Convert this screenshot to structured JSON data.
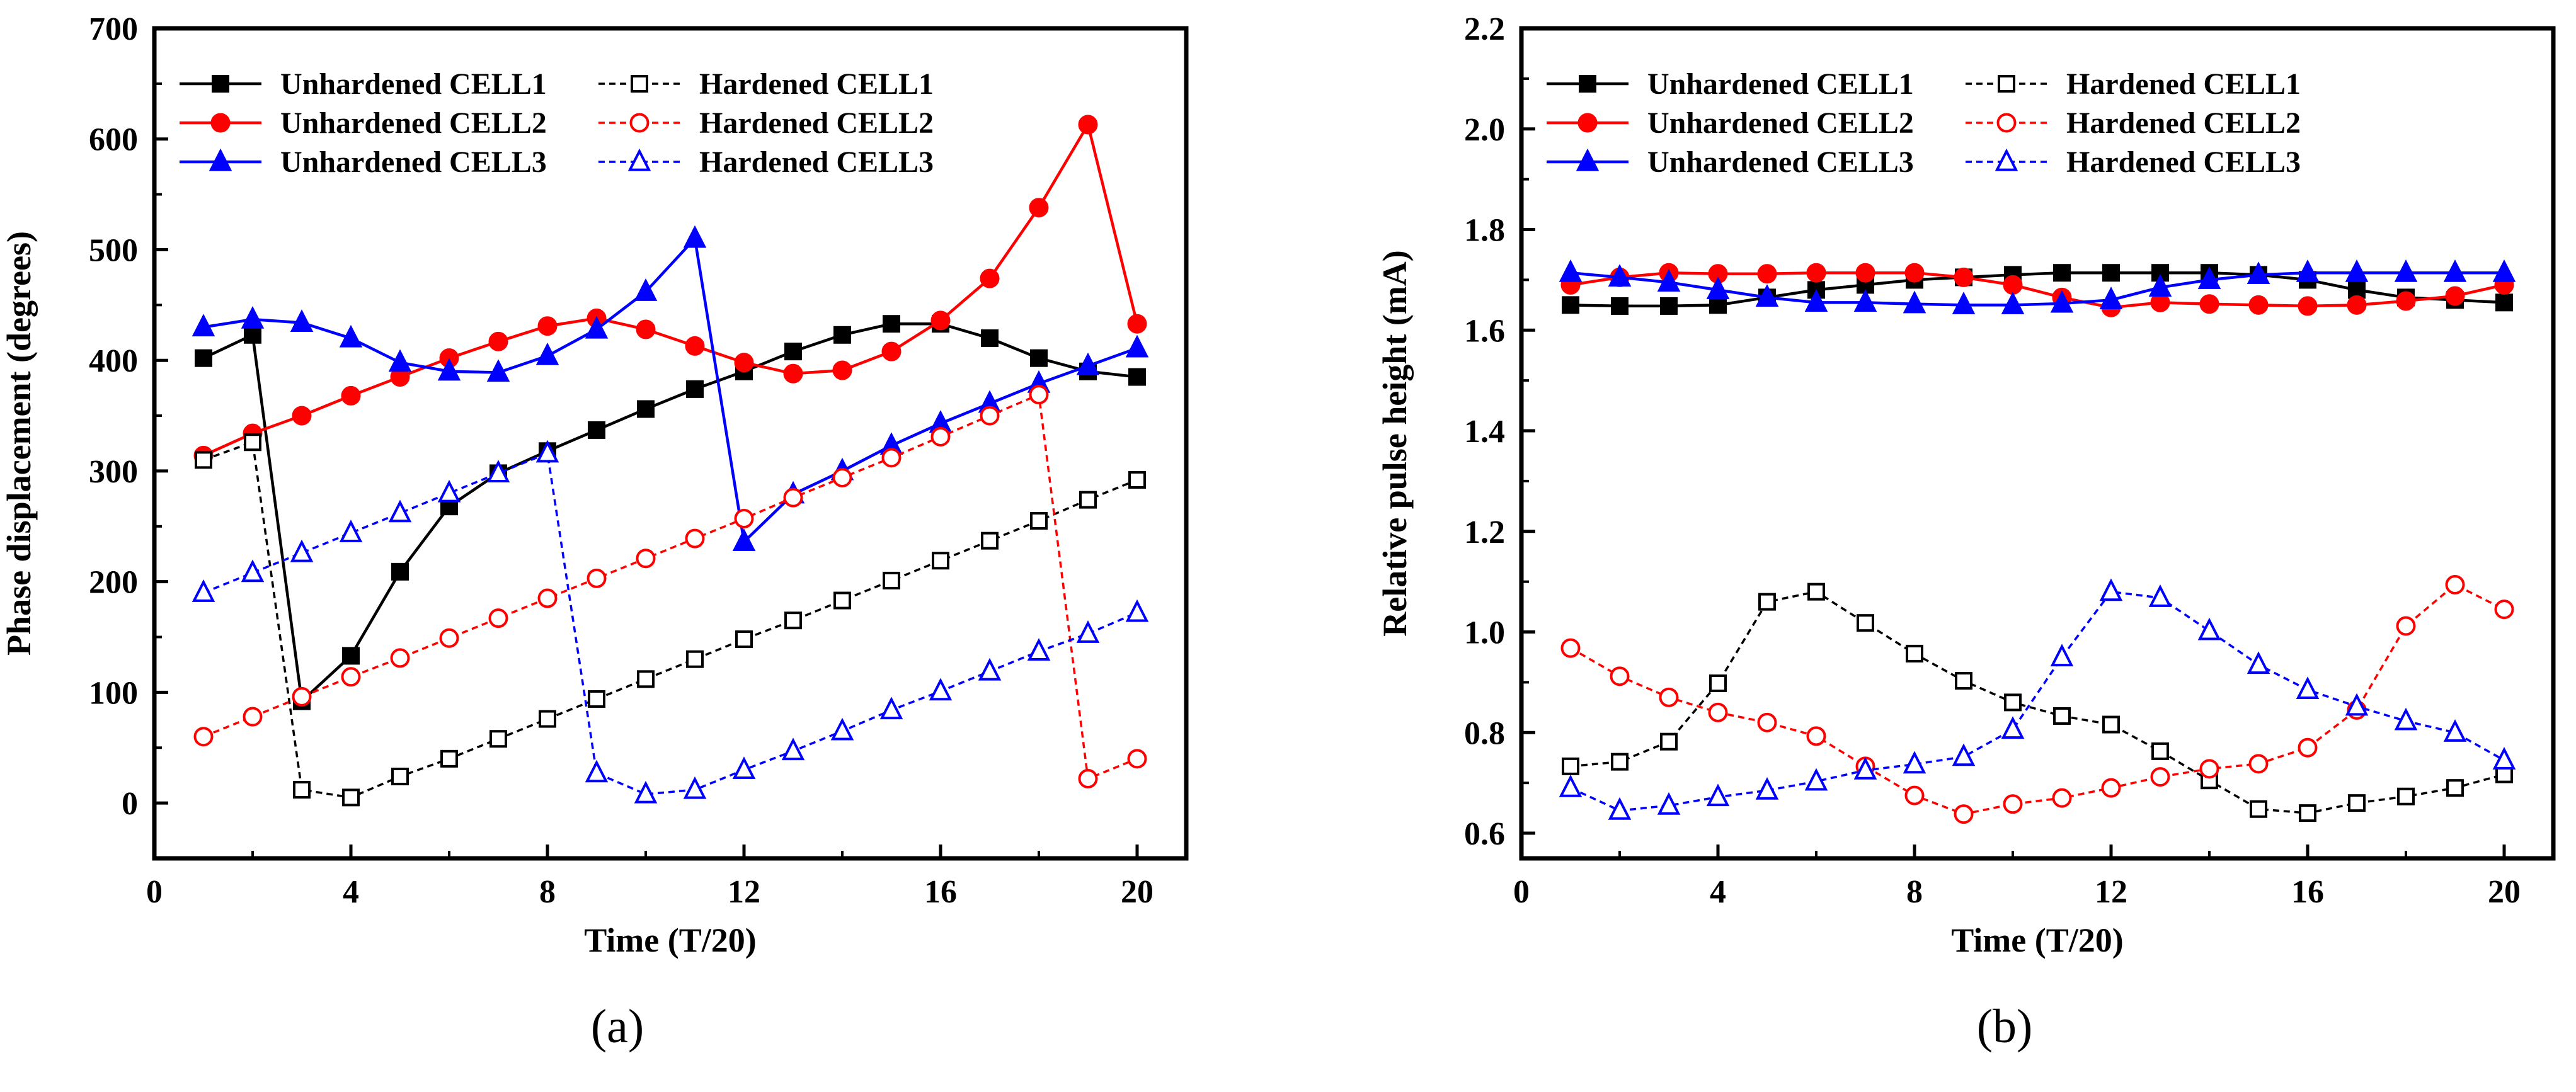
{
  "chart_data": [
    {
      "type": "line",
      "panel_label": "(a)",
      "xlabel": "Time (T/20)",
      "ylabel": "Phase displacement (degrees)",
      "xlim": [
        0,
        21
      ],
      "ylim": [
        -50,
        700
      ],
      "xticks": [
        0,
        4,
        8,
        12,
        16,
        20
      ],
      "yticks": [
        0,
        100,
        200,
        300,
        400,
        500,
        600,
        700
      ],
      "legend_position": "top-left",
      "x": [
        1,
        2,
        3,
        4,
        5,
        6,
        7,
        8,
        9,
        10,
        11,
        12,
        13,
        14,
        15,
        16,
        17,
        18,
        19,
        20
      ],
      "series": [
        {
          "name": "Unhardened CELL1",
          "color": "#000000",
          "marker": "square",
          "filled": true,
          "dashed": false,
          "values": [
            402,
            423,
            92,
            133,
            209,
            268,
            298,
            318,
            337,
            356,
            374,
            390,
            408,
            423,
            433,
            433,
            420,
            402,
            390,
            385
          ]
        },
        {
          "name": "Unhardened CELL2",
          "color": "#ff0000",
          "marker": "circle",
          "filled": true,
          "dashed": false,
          "values": [
            314,
            334,
            350,
            368,
            385,
            402,
            417,
            431,
            438,
            428,
            413,
            398,
            388,
            391,
            408,
            436,
            474,
            538,
            613,
            433
          ]
        },
        {
          "name": "Unhardened CELL3",
          "color": "#0000ff",
          "marker": "triangle",
          "filled": true,
          "dashed": false,
          "values": [
            430,
            437,
            434,
            420,
            398,
            390,
            389,
            404,
            428,
            462,
            510,
            236,
            279,
            300,
            323,
            343,
            361,
            379,
            395,
            411
          ]
        },
        {
          "name": "Hardened CELL1",
          "color": "#000000",
          "marker": "square",
          "filled": false,
          "dashed": true,
          "values": [
            310,
            326,
            12,
            5,
            24,
            40,
            58,
            76,
            94,
            112,
            130,
            148,
            165,
            183,
            201,
            219,
            237,
            255,
            274,
            292
          ]
        },
        {
          "name": "Hardened CELL2",
          "color": "#ff0000",
          "marker": "circle",
          "filled": false,
          "dashed": true,
          "values": [
            60,
            78,
            96,
            114,
            131,
            149,
            167,
            185,
            203,
            221,
            239,
            257,
            276,
            294,
            312,
            331,
            350,
            369,
            22,
            40
          ]
        },
        {
          "name": "Hardened CELL3",
          "color": "#0000ff",
          "marker": "triangle",
          "filled": false,
          "dashed": true,
          "values": [
            190,
            208,
            226,
            244,
            262,
            280,
            298,
            316,
            27,
            8,
            12,
            30,
            47,
            65,
            84,
            101,
            119,
            137,
            153,
            172
          ]
        }
      ]
    },
    {
      "type": "line",
      "panel_label": "(b)",
      "xlabel": "Time (T/20)",
      "ylabel": "Relative pulse height (mA)",
      "xlim": [
        0,
        21
      ],
      "ylim": [
        0.55,
        2.2
      ],
      "xticks": [
        0,
        4,
        8,
        12,
        16,
        20
      ],
      "yticks": [
        0.6,
        0.8,
        1.0,
        1.2,
        1.4,
        1.6,
        1.8,
        2.0,
        2.2
      ],
      "ytick_labels": [
        "0.6",
        "0.8",
        "1.0",
        "1.2",
        "1.4",
        "1.6",
        "1.8",
        "2.0",
        "2.2"
      ],
      "legend_position": "top-left",
      "x": [
        1,
        2,
        3,
        4,
        5,
        6,
        7,
        8,
        9,
        10,
        11,
        12,
        13,
        14,
        15,
        16,
        17,
        18,
        19,
        20
      ],
      "series": [
        {
          "name": "Unhardened CELL1",
          "color": "#000000",
          "marker": "square",
          "filled": true,
          "dashed": false,
          "values": [
            1.65,
            1.648,
            1.648,
            1.65,
            1.665,
            1.68,
            1.69,
            1.7,
            1.705,
            1.71,
            1.714,
            1.714,
            1.714,
            1.714,
            1.71,
            1.7,
            1.68,
            1.665,
            1.66,
            1.655
          ]
        },
        {
          "name": "Unhardened CELL2",
          "color": "#ff0000",
          "marker": "circle",
          "filled": true,
          "dashed": false,
          "values": [
            1.69,
            1.705,
            1.714,
            1.712,
            1.712,
            1.714,
            1.714,
            1.714,
            1.705,
            1.69,
            1.665,
            1.645,
            1.655,
            1.652,
            1.65,
            1.648,
            1.65,
            1.658,
            1.668,
            1.69
          ]
        },
        {
          "name": "Unhardened CELL3",
          "color": "#0000ff",
          "marker": "triangle",
          "filled": true,
          "dashed": false,
          "values": [
            1.714,
            1.705,
            1.695,
            1.68,
            1.665,
            1.655,
            1.655,
            1.652,
            1.65,
            1.65,
            1.653,
            1.66,
            1.685,
            1.7,
            1.71,
            1.714,
            1.714,
            1.714,
            1.714,
            1.714
          ]
        },
        {
          "name": "Hardened CELL1",
          "color": "#000000",
          "marker": "square",
          "filled": false,
          "dashed": true,
          "values": [
            0.733,
            0.742,
            0.782,
            0.898,
            1.06,
            1.08,
            1.018,
            0.957,
            0.903,
            0.86,
            0.833,
            0.816,
            0.763,
            0.705,
            0.648,
            0.64,
            0.66,
            0.673,
            0.69,
            0.717
          ]
        },
        {
          "name": "Hardened CELL2",
          "color": "#ff0000",
          "marker": "circle",
          "filled": false,
          "dashed": true,
          "values": [
            0.968,
            0.912,
            0.87,
            0.84,
            0.82,
            0.793,
            0.733,
            0.675,
            0.638,
            0.658,
            0.67,
            0.69,
            0.712,
            0.728,
            0.738,
            0.77,
            0.845,
            1.012,
            1.094,
            1.045
          ]
        },
        {
          "name": "Hardened CELL3",
          "color": "#0000ff",
          "marker": "triangle",
          "filled": false,
          "dashed": true,
          "values": [
            0.69,
            0.645,
            0.655,
            0.672,
            0.685,
            0.703,
            0.725,
            0.737,
            0.752,
            0.806,
            0.95,
            1.08,
            1.068,
            1.002,
            0.935,
            0.885,
            0.852,
            0.823,
            0.8,
            0.745
          ]
        }
      ]
    }
  ]
}
